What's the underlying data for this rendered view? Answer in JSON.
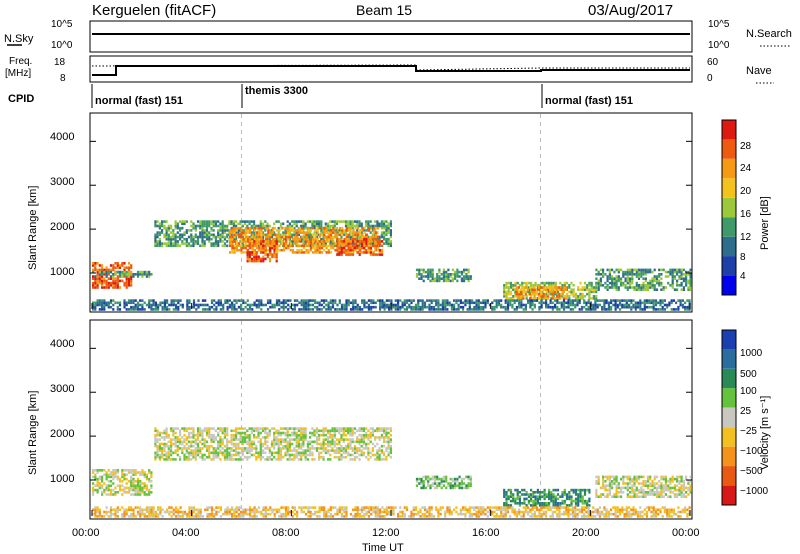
{
  "header": {
    "station": "Kerguelen (fitACF)",
    "beam": "Beam 15",
    "date": "03/Aug/2017"
  },
  "status_panels": {
    "nsky_label": "N.Sky",
    "nsearch_label": "N.Search",
    "freq_label_line1": "Freq.",
    "freq_label_line2": "[MHz]",
    "nave_label": "Nave",
    "cpid_label": "CPID",
    "noise_left_ticks": [
      "10^5",
      "10^0"
    ],
    "noise_right_ticks": [
      "10^5",
      "10^0"
    ],
    "freq_left_ticks": [
      "18",
      "8"
    ],
    "freq_right_ticks": [
      "60",
      "0"
    ],
    "cpid_segments": [
      {
        "label": "normal (fast) 151",
        "start_hour": 0
      },
      {
        "label": "themis 3300",
        "start_hour": 6
      },
      {
        "label": "normal (fast) 151",
        "start_hour": 18
      }
    ]
  },
  "axes": {
    "ylabel": "Slant Range [km]",
    "xlabel": "Time UT",
    "x_ticks": [
      "00:00",
      "04:00",
      "08:00",
      "12:00",
      "16:00",
      "20:00",
      "00:00"
    ],
    "y_ticks": [
      "1000",
      "2000",
      "3000",
      "4000"
    ]
  },
  "power_scale": {
    "label": "Power [dB]",
    "ticks": [
      "4",
      "8",
      "12",
      "16",
      "20",
      "24",
      "28"
    ],
    "colors": [
      "#0000ee",
      "#1d3fa8",
      "#2e6e8c",
      "#3f9a6a",
      "#9cc83c",
      "#f3c21c",
      "#f59a12",
      "#ee5a10",
      "#dd1a12"
    ]
  },
  "velocity_scale": {
    "label": "Velocity [m s⁻¹]",
    "ticks": [
      "1000",
      "500",
      "100",
      "25",
      "−25",
      "−100",
      "−500",
      "−1000"
    ],
    "colors": [
      "#1a3fb0",
      "#2a6ea0",
      "#2a8a55",
      "#64c23c",
      "#c8c8c0",
      "#f2c020",
      "#f5921a",
      "#e85a14",
      "#d81818"
    ]
  },
  "chart_data": [
    {
      "type": "heatmap",
      "title": "Power",
      "xlabel": "Time UT",
      "ylabel": "Slant Range [km]",
      "xlim": [
        0,
        24
      ],
      "ylim": [
        180,
        4600
      ],
      "colorbar": {
        "label": "Power [dB]",
        "range": [
          0,
          32
        ]
      },
      "regions": [
        {
          "t0": 0.0,
          "t1": 1.6,
          "r0": 700,
          "r1": 1300,
          "level": 7
        },
        {
          "t0": 0.0,
          "t1": 2.4,
          "r0": 950,
          "r1": 1100,
          "level": 3
        },
        {
          "t0": 2.5,
          "t1": 12.0,
          "r0": 1650,
          "r1": 2250,
          "level": 3
        },
        {
          "t0": 5.5,
          "t1": 11.5,
          "r0": 1500,
          "r1": 2100,
          "level": 6
        },
        {
          "t0": 6.2,
          "t1": 7.4,
          "r0": 1300,
          "r1": 1800,
          "level": 7
        },
        {
          "t0": 9.8,
          "t1": 11.6,
          "r0": 1450,
          "r1": 1850,
          "level": 7
        },
        {
          "t0": 13.0,
          "t1": 15.2,
          "r0": 850,
          "r1": 1150,
          "level": 3
        },
        {
          "t0": 16.5,
          "t1": 20.2,
          "r0": 450,
          "r1": 850,
          "level": 4
        },
        {
          "t0": 17.0,
          "t1": 19.0,
          "r0": 450,
          "r1": 750,
          "level": 6
        },
        {
          "t0": 20.2,
          "t1": 24.0,
          "r0": 650,
          "r1": 1150,
          "level": 3
        },
        {
          "t0": 0.0,
          "t1": 24.0,
          "r0": 200,
          "r1": 450,
          "level": 2
        }
      ]
    },
    {
      "type": "heatmap",
      "title": "Velocity",
      "xlabel": "Time UT",
      "ylabel": "Slant Range [km]",
      "xlim": [
        0,
        24
      ],
      "ylim": [
        180,
        4600
      ],
      "colorbar": {
        "label": "Velocity [m s⁻¹]",
        "range": [
          -1000,
          1000
        ]
      },
      "regions": [
        {
          "t0": 0.0,
          "t1": 2.4,
          "r0": 700,
          "r1": 1300,
          "level": 4
        },
        {
          "t0": 2.5,
          "t1": 12.0,
          "r0": 1500,
          "r1": 2250,
          "level": 4
        },
        {
          "t0": 13.0,
          "t1": 15.2,
          "r0": 850,
          "r1": 1150,
          "level": 3
        },
        {
          "t0": 16.5,
          "t1": 20.0,
          "r0": 450,
          "r1": 850,
          "level": 2
        },
        {
          "t0": 20.2,
          "t1": 24.0,
          "r0": 650,
          "r1": 1150,
          "level": 4
        },
        {
          "t0": 0.0,
          "t1": 24.0,
          "r0": 200,
          "r1": 450,
          "level": 5
        }
      ]
    }
  ]
}
